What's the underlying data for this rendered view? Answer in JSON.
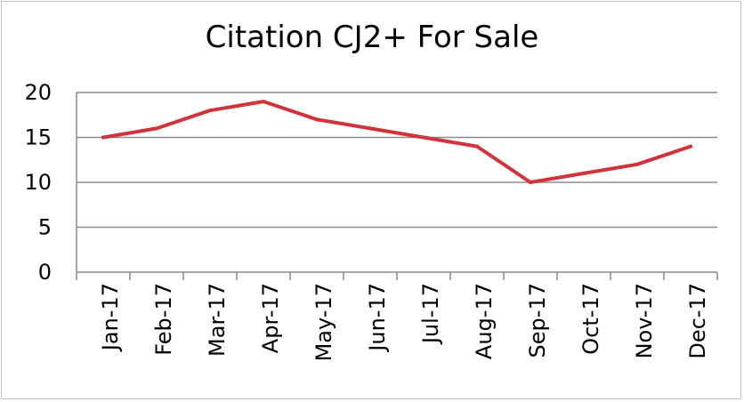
{
  "chart_data": {
    "type": "line",
    "title": "Citation CJ2+ For Sale",
    "xlabel": "",
    "ylabel": "",
    "categories": [
      "Jan-17",
      "Feb-17",
      "Mar-17",
      "Apr-17",
      "May-17",
      "Jun-17",
      "Jul-17",
      "Aug-17",
      "Sep-17",
      "Oct-17",
      "Nov-17",
      "Dec-17"
    ],
    "series": [
      {
        "values": [
          15,
          16,
          18,
          19,
          17,
          16,
          15,
          14,
          10,
          11,
          12,
          14
        ],
        "color": "#d0333a"
      }
    ],
    "ylim": [
      0,
      20
    ],
    "yticks": [
      "0",
      "5",
      "10",
      "15",
      "20"
    ],
    "grid": "horizontal",
    "legend": "none"
  }
}
